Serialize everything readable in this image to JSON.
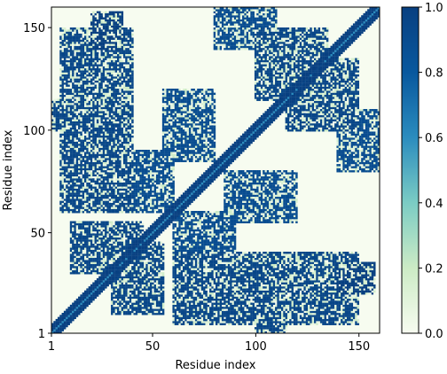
{
  "chart_data": {
    "type": "heatmap",
    "title": "",
    "xlabel": "Residue index",
    "ylabel": "Residue index",
    "x_range": [
      1,
      160
    ],
    "y_range": [
      1,
      160
    ],
    "x_ticks": [
      {
        "value": 1,
        "label": "1"
      },
      {
        "value": 50,
        "label": "50"
      },
      {
        "value": 100,
        "label": "100"
      },
      {
        "value": 150,
        "label": "150"
      }
    ],
    "y_ticks": [
      {
        "value": 1,
        "label": "1"
      },
      {
        "value": 50,
        "label": "50"
      },
      {
        "value": 100,
        "label": "100"
      },
      {
        "value": 150,
        "label": "150"
      }
    ],
    "colorbar": {
      "range": [
        0.0,
        1.0
      ],
      "ticks": [
        "0.0",
        "0.2",
        "0.4",
        "0.6",
        "0.8",
        "1.0"
      ],
      "tick_values": [
        0.0,
        0.2,
        0.4,
        0.6,
        0.8,
        1.0
      ],
      "colormap": "GnBu",
      "colors": [
        "#f7fcf0",
        "#ccebc5",
        "#7bccc4",
        "#2b8cbe",
        "#08589e",
        "#084081"
      ]
    },
    "symmetric": true,
    "grid": false,
    "contact_regions": [
      {
        "type": "band",
        "offset_residues": 4,
        "value": 1.0
      },
      {
        "i": [
          5,
          40
        ],
        "j": [
          60,
          150
        ],
        "value": 0.95
      },
      {
        "i": [
          20,
          35
        ],
        "j": [
          140,
          158
        ],
        "value": 1.0
      },
      {
        "i": [
          30,
          55
        ],
        "j": [
          10,
          45
        ],
        "value": 0.95
      },
      {
        "i": [
          40,
          60
        ],
        "j": [
          60,
          90
        ],
        "value": 0.9
      },
      {
        "i": [
          60,
          80
        ],
        "j": [
          85,
          105
        ],
        "value": 0.9
      },
      {
        "i": [
          85,
          120
        ],
        "j": [
          55,
          80
        ],
        "value": 0.9
      },
      {
        "i": [
          100,
          115
        ],
        "j": [
          1,
          40
        ],
        "value": 0.95
      },
      {
        "i": [
          115,
          150
        ],
        "j": [
          100,
          135
        ],
        "value": 0.95
      },
      {
        "i": [
          140,
          160
        ],
        "j": [
          80,
          110
        ],
        "value": 0.9
      }
    ]
  }
}
